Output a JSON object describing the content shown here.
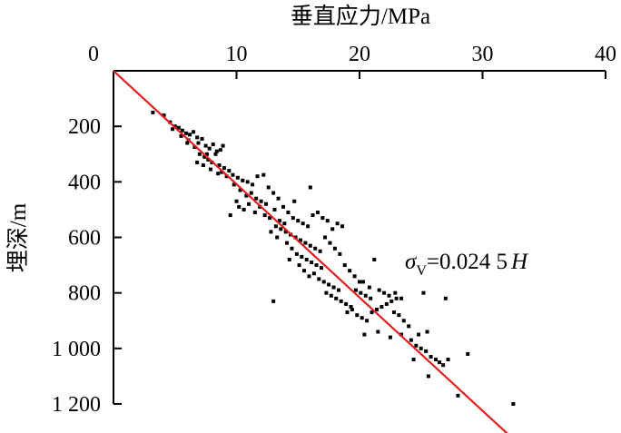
{
  "chart_data": {
    "type": "scatter",
    "xlabel": "垂直应力/MPa",
    "ylabel": "埋深/m",
    "xlim": [
      0,
      40
    ],
    "ylim": [
      0,
      1200
    ],
    "y_inverted": true,
    "x_axis_position": "top",
    "x_ticks": [
      "0",
      "10",
      "20",
      "30",
      "40"
    ],
    "y_ticks": [
      "200",
      "400",
      "600",
      "800",
      "1 000",
      "1 200"
    ],
    "grid": false,
    "legend": "none",
    "colors": {
      "points": "#000000",
      "fit_line": "#e02020",
      "axis": "#000000"
    },
    "fit_line": {
      "slope": 0.0245,
      "x_start": 0,
      "x_end": 32.6
    },
    "annotation": {
      "sigma": "σ",
      "sub": "V",
      "eq": "=0.024 5",
      "var": "H"
    },
    "series": [
      {
        "points": [
          [
            3.2,
            150
          ],
          [
            4.1,
            160
          ],
          [
            4.6,
            185
          ],
          [
            5.0,
            200
          ],
          [
            5.3,
            205
          ],
          [
            5.6,
            215
          ],
          [
            5.9,
            225
          ],
          [
            6.2,
            230
          ],
          [
            6.5,
            220
          ],
          [
            6.8,
            240
          ],
          [
            4.8,
            210
          ],
          [
            5.5,
            235
          ],
          [
            6.1,
            250
          ],
          [
            6.9,
            260
          ],
          [
            7.2,
            245
          ],
          [
            7.5,
            270
          ],
          [
            7.8,
            280
          ],
          [
            8.1,
            265
          ],
          [
            8.4,
            290
          ],
          [
            8.7,
            285
          ],
          [
            6.0,
            260
          ],
          [
            6.6,
            275
          ],
          [
            7.0,
            300
          ],
          [
            7.4,
            310
          ],
          [
            7.7,
            320
          ],
          [
            8.0,
            330
          ],
          [
            8.3,
            300
          ],
          [
            8.6,
            340
          ],
          [
            9.0,
            350
          ],
          [
            9.4,
            360
          ],
          [
            7.3,
            340
          ],
          [
            7.9,
            355
          ],
          [
            8.5,
            370
          ],
          [
            8.8,
            365
          ],
          [
            9.2,
            380
          ],
          [
            9.7,
            375
          ],
          [
            10.1,
            385
          ],
          [
            10.5,
            395
          ],
          [
            10.9,
            400
          ],
          [
            11.3,
            410
          ],
          [
            6.8,
            330
          ],
          [
            7.6,
            300
          ],
          [
            8.9,
            270
          ],
          [
            9.8,
            410
          ],
          [
            10.3,
            430
          ],
          [
            10.8,
            450
          ],
          [
            11.2,
            440
          ],
          [
            11.6,
            460
          ],
          [
            12.0,
            470
          ],
          [
            12.4,
            480
          ],
          [
            10.0,
            470
          ],
          [
            10.6,
            500
          ],
          [
            11.0,
            480
          ],
          [
            11.5,
            510
          ],
          [
            11.9,
            490
          ],
          [
            12.3,
            520
          ],
          [
            12.7,
            530
          ],
          [
            13.1,
            500
          ],
          [
            13.5,
            540
          ],
          [
            13.9,
            550
          ],
          [
            9.5,
            520
          ],
          [
            10.2,
            490
          ],
          [
            11.7,
            380
          ],
          [
            12.2,
            375
          ],
          [
            12.6,
            420
          ],
          [
            13.0,
            440
          ],
          [
            13.4,
            460
          ],
          [
            13.8,
            490
          ],
          [
            14.2,
            510
          ],
          [
            14.6,
            530
          ],
          [
            13.2,
            560
          ],
          [
            13.6,
            570
          ],
          [
            14.0,
            580
          ],
          [
            14.4,
            590
          ],
          [
            14.8,
            600
          ],
          [
            15.2,
            610
          ],
          [
            15.6,
            620
          ],
          [
            16.0,
            630
          ],
          [
            16.4,
            640
          ],
          [
            16.8,
            650
          ],
          [
            12.8,
            580
          ],
          [
            13.3,
            600
          ],
          [
            14.1,
            620
          ],
          [
            14.5,
            640
          ],
          [
            14.9,
            660
          ],
          [
            15.3,
            670
          ],
          [
            15.7,
            680
          ],
          [
            16.1,
            690
          ],
          [
            16.5,
            700
          ],
          [
            16.9,
            710
          ],
          [
            15.0,
            540
          ],
          [
            15.4,
            550
          ],
          [
            15.8,
            560
          ],
          [
            16.2,
            520
          ],
          [
            16.6,
            510
          ],
          [
            17.0,
            530
          ],
          [
            17.4,
            540
          ],
          [
            17.8,
            570
          ],
          [
            18.2,
            550
          ],
          [
            18.6,
            560
          ],
          [
            14.3,
            680
          ],
          [
            15.1,
            700
          ],
          [
            15.5,
            720
          ],
          [
            15.9,
            740
          ],
          [
            16.3,
            730
          ],
          [
            16.7,
            750
          ],
          [
            17.1,
            760
          ],
          [
            17.5,
            770
          ],
          [
            17.9,
            780
          ],
          [
            18.3,
            790
          ],
          [
            16.0,
            420
          ],
          [
            14.7,
            470
          ],
          [
            17.2,
            600
          ],
          [
            17.6,
            620
          ],
          [
            18.0,
            640
          ],
          [
            18.4,
            660
          ],
          [
            18.8,
            700
          ],
          [
            19.2,
            720
          ],
          [
            19.6,
            740
          ],
          [
            20.0,
            760
          ],
          [
            17.3,
            800
          ],
          [
            17.7,
            810
          ],
          [
            18.1,
            820
          ],
          [
            18.5,
            830
          ],
          [
            18.9,
            840
          ],
          [
            19.3,
            850
          ],
          [
            19.7,
            790
          ],
          [
            20.1,
            800
          ],
          [
            20.5,
            810
          ],
          [
            20.9,
            820
          ],
          [
            19.0,
            870
          ],
          [
            19.8,
            880
          ],
          [
            20.2,
            890
          ],
          [
            20.6,
            900
          ],
          [
            21.0,
            870
          ],
          [
            21.4,
            860
          ],
          [
            21.8,
            850
          ],
          [
            22.2,
            840
          ],
          [
            22.6,
            830
          ],
          [
            23.0,
            820
          ],
          [
            20.3,
            760
          ],
          [
            20.8,
            780
          ],
          [
            21.2,
            680
          ],
          [
            21.6,
            790
          ],
          [
            22.0,
            800
          ],
          [
            22.4,
            810
          ],
          [
            22.8,
            870
          ],
          [
            23.2,
            880
          ],
          [
            23.6,
            900
          ],
          [
            24.0,
            920
          ],
          [
            20.4,
            950
          ],
          [
            21.5,
            940
          ],
          [
            22.5,
            960
          ],
          [
            23.4,
            950
          ],
          [
            24.2,
            970
          ],
          [
            24.6,
            990
          ],
          [
            25.0,
            1000
          ],
          [
            25.4,
            1010
          ],
          [
            25.8,
            1030
          ],
          [
            26.2,
            1040
          ],
          [
            24.8,
            950
          ],
          [
            25.5,
            940
          ],
          [
            25.2,
            800
          ],
          [
            27.0,
            820
          ],
          [
            26.5,
            1050
          ],
          [
            27.2,
            1040
          ],
          [
            26.8,
            1060
          ],
          [
            28.8,
            1020
          ],
          [
            25.6,
            1100
          ],
          [
            28.0,
            1170
          ],
          [
            32.5,
            1200
          ],
          [
            13.0,
            830
          ],
          [
            23.4,
            820
          ],
          [
            24.4,
            1040
          ],
          [
            19.4,
            860
          ],
          [
            22.9,
            800
          ]
        ]
      }
    ]
  }
}
